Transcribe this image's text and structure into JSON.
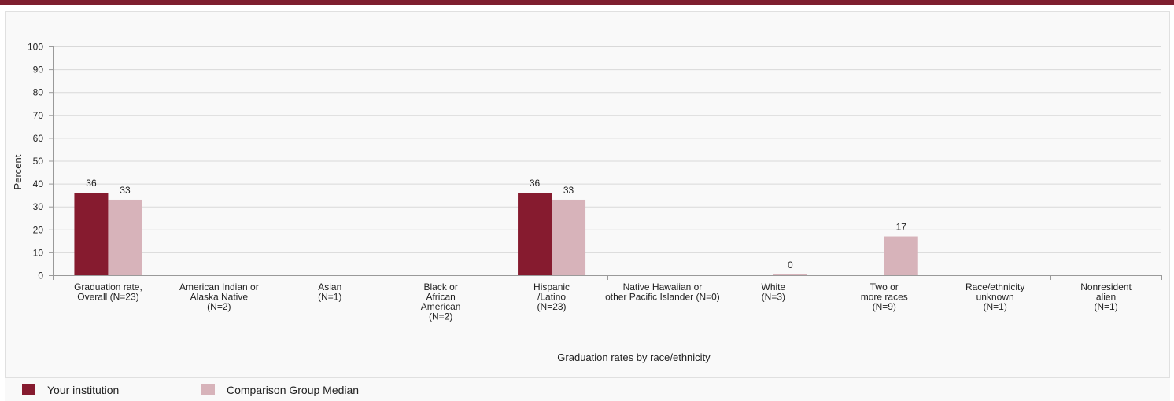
{
  "colors": {
    "institution": "#861b2f",
    "comparison": "#d7b3ba",
    "grid": "#d9d9d9",
    "axis": "#9a9a9a",
    "header": "#7f1f2f"
  },
  "chart_data": {
    "type": "bar",
    "ylabel": "Percent",
    "xlabel": "Graduation rates by race/ethnicity",
    "ylim": [
      0,
      100
    ],
    "yticks": [
      0,
      10,
      20,
      30,
      40,
      50,
      60,
      70,
      80,
      90,
      100
    ],
    "grid": true,
    "legend_position": "bottom-left",
    "categories": [
      [
        "Graduation rate,",
        "Overall (N=23)"
      ],
      [
        "American Indian or",
        "Alaska Native",
        "(N=2)"
      ],
      [
        "Asian",
        "(N=1)"
      ],
      [
        "Black or",
        "African",
        "American",
        "(N=2)"
      ],
      [
        "Hispanic",
        "/Latino",
        "(N=23)"
      ],
      [
        "Native Hawaiian or",
        "other Pacific Islander (N=0)"
      ],
      [
        "White",
        "(N=3)"
      ],
      [
        "Two or",
        "more races",
        "(N=9)"
      ],
      [
        "Race/ethnicity",
        "unknown",
        "(N=1)"
      ],
      [
        "Nonresident",
        "alien",
        "(N=1)"
      ]
    ],
    "series": [
      {
        "name": "Your institution",
        "color": "#861b2f",
        "values": [
          36,
          null,
          null,
          null,
          36,
          null,
          null,
          null,
          null,
          null
        ]
      },
      {
        "name": "Comparison Group Median",
        "color": "#d7b3ba",
        "values": [
          33,
          null,
          null,
          null,
          33,
          null,
          0,
          17,
          null,
          null
        ]
      }
    ]
  }
}
